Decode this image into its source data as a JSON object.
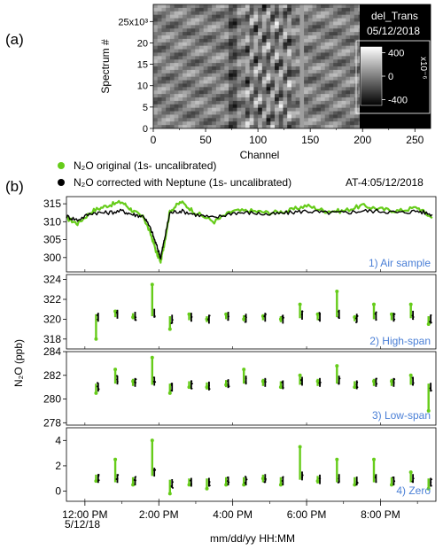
{
  "chart_data": [
    {
      "type": "heatmap",
      "panel_label": "(a)",
      "title": "del_Trans",
      "date": "05/12/2018",
      "xlabel": "Channel",
      "ylabel": "Spectrum #",
      "xlim": [
        0,
        265
      ],
      "ylim": [
        0,
        29000
      ],
      "x_ticks": [
        "0",
        "50",
        "100",
        "150",
        "200",
        "250"
      ],
      "y_ticks": [
        "0",
        "5",
        "10",
        "15",
        "20",
        "25x10³"
      ],
      "colorbar": {
        "ticks": [
          "400",
          "0",
          "-400"
        ],
        "scale_label": "x10⁻⁶",
        "range": [
          -500,
          500
        ]
      },
      "data_extent_channel": [
        0,
        200
      ]
    },
    {
      "type": "scatter",
      "panel_label": "(b)",
      "date_label": "AT-4:05/12/2018",
      "legend": [
        {
          "name": "N₂O original (1s- uncalibrated)",
          "color": "#66cc1a"
        },
        {
          "name": "N₂O corrected with Neptune (1s- uncalibrated)",
          "color": "#000000"
        }
      ],
      "ylabel": "N₂O (ppb)",
      "xlabel": "mm/dd/yy HH:MM",
      "x_ticks": [
        "12:00 PM",
        "2:00 PM",
        "4:00 PM",
        "6:00 PM",
        "8:00 PM"
      ],
      "x_tick_hours": [
        12,
        14,
        16,
        18,
        20
      ],
      "x_sublabel": "5/12/18",
      "xlim": [
        11.5,
        21.5
      ],
      "subplots": [
        {
          "label": "1) Air sample",
          "ylim": [
            296,
            317
          ],
          "y_ticks": [
            300,
            305,
            310,
            315
          ],
          "series": [
            {
              "name": "original",
              "color": "#66cc1a",
              "x": [
                11.5,
                11.8,
                12.2,
                12.6,
                13.0,
                13.3,
                13.6,
                13.8,
                13.95,
                14.05,
                14.15,
                14.3,
                14.6,
                15.0,
                15.5,
                16.0,
                16.5,
                17.0,
                17.5,
                18.0,
                18.5,
                19.0,
                19.5,
                20.0,
                20.5,
                21.0,
                21.4
              ],
              "y": [
                311,
                309.5,
                313,
                314.5,
                315.5,
                313,
                311,
                306,
                301,
                299,
                304,
                313,
                315.5,
                312.5,
                310,
                313,
                313,
                312.5,
                313,
                314.5,
                313,
                313,
                314.5,
                313.5,
                313,
                314,
                311
              ]
            },
            {
              "name": "corrected",
              "color": "#000000",
              "x": [
                11.5,
                11.8,
                12.2,
                12.6,
                13.0,
                13.3,
                13.6,
                13.8,
                13.95,
                14.05,
                14.15,
                14.3,
                14.6,
                15.0,
                15.5,
                16.0,
                16.5,
                17.0,
                17.5,
                18.0,
                18.5,
                19.0,
                19.5,
                20.0,
                20.5,
                21.0,
                21.4
              ],
              "y": [
                311.5,
                310.5,
                312.5,
                312.5,
                313,
                312,
                311.5,
                307.5,
                303,
                300,
                305,
                312.5,
                313,
                312,
                311,
                312.5,
                312.5,
                312,
                312.5,
                313,
                312.5,
                312.5,
                313,
                313,
                312.5,
                313,
                312
              ]
            }
          ]
        },
        {
          "label": "2) High-span",
          "ylim": [
            317,
            324.5
          ],
          "y_ticks": [
            318,
            320,
            322,
            324
          ],
          "centers": [
            12.33,
            12.85,
            13.33,
            13.85,
            14.33,
            14.85,
            15.33,
            15.85,
            16.33,
            16.85,
            17.33,
            17.85,
            18.33,
            18.85,
            19.33,
            19.85,
            20.33,
            20.85,
            21.33
          ],
          "original": [
            318.0,
            320.8,
            320.2,
            323.5,
            319.0,
            320.5,
            320.0,
            320.5,
            320.0,
            320.3,
            320.0,
            321.5,
            320.5,
            322.8,
            320.2,
            321.5,
            320.5,
            321.5,
            319.5
          ],
          "corrected": [
            320.2,
            320.5,
            320.3,
            320.6,
            320.0,
            320.2,
            320.0,
            320.3,
            320.1,
            320.2,
            320.0,
            320.4,
            320.2,
            320.5,
            320.1,
            320.3,
            320.2,
            320.4,
            320.0
          ]
        },
        {
          "label": "3) Low-span",
          "ylim": [
            277.8,
            284
          ],
          "y_ticks": [
            278,
            280,
            282,
            284
          ],
          "centers": [
            12.33,
            12.85,
            13.33,
            13.85,
            14.33,
            14.85,
            15.33,
            15.85,
            16.33,
            16.85,
            17.33,
            17.85,
            18.33,
            18.85,
            19.33,
            19.85,
            20.33,
            20.85,
            21.33
          ],
          "original": [
            280.5,
            282.5,
            281.5,
            283.5,
            280.5,
            281.0,
            281.0,
            281.2,
            282.5,
            281.5,
            281.0,
            282.0,
            281.5,
            282.8,
            281.0,
            281.5,
            281.5,
            282.0,
            279.0
          ],
          "corrected": [
            281.0,
            281.6,
            281.4,
            281.5,
            281.0,
            281.2,
            281.1,
            281.3,
            281.6,
            281.4,
            281.2,
            281.5,
            281.4,
            281.6,
            281.2,
            281.4,
            281.4,
            281.5,
            281.0
          ]
        },
        {
          "label": "4) Zero",
          "ylim": [
            -0.8,
            5
          ],
          "y_ticks": [
            0,
            2,
            4
          ],
          "centers": [
            12.33,
            12.85,
            13.33,
            13.85,
            14.33,
            14.85,
            15.33,
            15.85,
            16.33,
            16.85,
            17.33,
            17.85,
            18.33,
            18.85,
            19.33,
            19.85,
            20.33,
            20.85,
            21.33
          ],
          "original": [
            0.8,
            2.5,
            0.5,
            4.0,
            -0.2,
            0.5,
            0.2,
            0.5,
            0.5,
            1.0,
            0.5,
            3.5,
            0.8,
            2.5,
            0.5,
            2.5,
            0.5,
            1.5,
            0.2
          ],
          "corrected": [
            1.0,
            1.0,
            0.8,
            1.5,
            0.6,
            0.7,
            0.7,
            0.8,
            0.8,
            1.0,
            0.8,
            1.2,
            0.9,
            1.0,
            0.8,
            1.0,
            0.8,
            1.0,
            0.7
          ]
        }
      ]
    }
  ]
}
